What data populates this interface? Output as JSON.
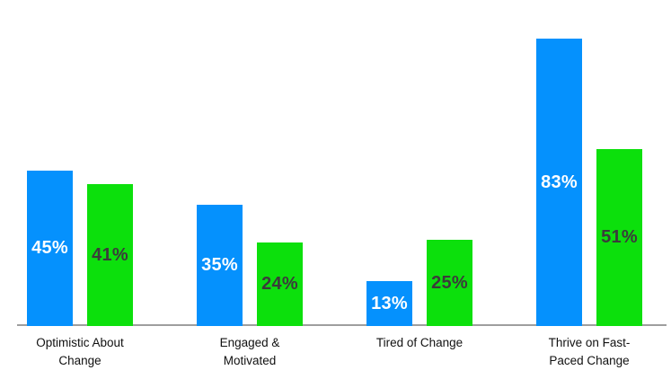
{
  "chart_data": {
    "type": "bar",
    "title": "",
    "xlabel": "",
    "ylabel": "",
    "categories": [
      "Optimistic About Change",
      "Engaged & Motivated",
      "Tired of Change",
      "Thrive on Fast-Paced Change"
    ],
    "category_labels_display": [
      "Optimistic About\nChange",
      "Engaged &\nMotivated",
      "Tired of Change",
      "Thrive on Fast-\nPaced Change"
    ],
    "series": [
      {
        "name": "blue",
        "color": "#0591fd",
        "label_color": "#ffffff",
        "values": [
          45,
          35,
          13,
          83
        ]
      },
      {
        "name": "green",
        "color": "#0ce00c",
        "label_color": "#3b3b3b",
        "values": [
          41,
          24,
          25,
          51
        ]
      }
    ],
    "value_suffix": "%",
    "ylim": [
      0,
      94
    ],
    "grid": false,
    "legend": "none",
    "axis_line_color": "#9e9e9e",
    "background_color": "#ffffff"
  }
}
